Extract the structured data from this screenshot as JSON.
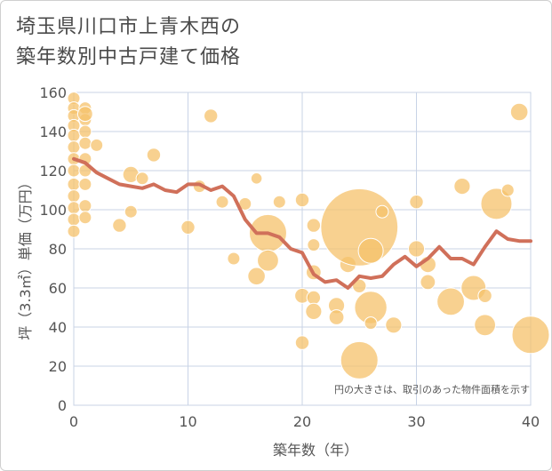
{
  "title_line1": "埼玉県川口市上青木西の",
  "title_line2": "築年数別中古戸建て価格",
  "chart_data": {
    "type": "scatter",
    "xlabel": "築年数（年）",
    "ylabel": "坪（3.3㎡）単価（万円）",
    "xlim": [
      0,
      40
    ],
    "ylim": [
      0,
      160
    ],
    "x_ticks": [
      "0",
      "10",
      "20",
      "30",
      "40"
    ],
    "y_ticks": [
      "0",
      "20",
      "40",
      "60",
      "80",
      "100",
      "120",
      "140",
      "160"
    ],
    "grid": true,
    "note": "円の大きさは、取引のあった物件面積を示す",
    "colors": {
      "bubble": "#f5c26b",
      "line": "#d0705a",
      "grid": "#c8d3e6",
      "plot_bg": "#ffffff"
    },
    "bubbles": [
      {
        "x": 0,
        "y": 157,
        "s": 1
      },
      {
        "x": 0,
        "y": 152,
        "s": 1
      },
      {
        "x": 0,
        "y": 148,
        "s": 1
      },
      {
        "x": 0,
        "y": 143,
        "s": 1
      },
      {
        "x": 0,
        "y": 138,
        "s": 1
      },
      {
        "x": 0,
        "y": 132,
        "s": 1
      },
      {
        "x": 0,
        "y": 126,
        "s": 1
      },
      {
        "x": 0,
        "y": 120,
        "s": 1
      },
      {
        "x": 0,
        "y": 113,
        "s": 1
      },
      {
        "x": 0,
        "y": 107,
        "s": 1
      },
      {
        "x": 0,
        "y": 101,
        "s": 1
      },
      {
        "x": 0,
        "y": 95,
        "s": 1
      },
      {
        "x": 0,
        "y": 89,
        "s": 1
      },
      {
        "x": 1,
        "y": 152,
        "s": 1
      },
      {
        "x": 1,
        "y": 146,
        "s": 1
      },
      {
        "x": 1,
        "y": 140,
        "s": 1
      },
      {
        "x": 1,
        "y": 134,
        "s": 1
      },
      {
        "x": 1,
        "y": 126,
        "s": 1
      },
      {
        "x": 1,
        "y": 120,
        "s": 1
      },
      {
        "x": 1,
        "y": 113,
        "s": 1
      },
      {
        "x": 1,
        "y": 102,
        "s": 1
      },
      {
        "x": 1,
        "y": 96,
        "s": 1
      },
      {
        "x": 1,
        "y": 149,
        "s": 1.2
      },
      {
        "x": 2,
        "y": 133,
        "s": 1
      },
      {
        "x": 4,
        "y": 92,
        "s": 1.1
      },
      {
        "x": 5,
        "y": 118,
        "s": 1.3
      },
      {
        "x": 5,
        "y": 99,
        "s": 1
      },
      {
        "x": 6,
        "y": 116,
        "s": 1
      },
      {
        "x": 7,
        "y": 128,
        "s": 1.1
      },
      {
        "x": 10,
        "y": 91,
        "s": 1.1
      },
      {
        "x": 11,
        "y": 112,
        "s": 1
      },
      {
        "x": 12,
        "y": 148,
        "s": 1.1
      },
      {
        "x": 13,
        "y": 104,
        "s": 1
      },
      {
        "x": 14,
        "y": 75,
        "s": 1
      },
      {
        "x": 15,
        "y": 103,
        "s": 1
      },
      {
        "x": 16,
        "y": 116,
        "s": 0.9
      },
      {
        "x": 16,
        "y": 66,
        "s": 1.4
      },
      {
        "x": 17,
        "y": 88,
        "s": 3.0
      },
      {
        "x": 17,
        "y": 74,
        "s": 1.7
      },
      {
        "x": 18,
        "y": 104,
        "s": 1
      },
      {
        "x": 20,
        "y": 105,
        "s": 1.1
      },
      {
        "x": 20,
        "y": 56,
        "s": 1.2
      },
      {
        "x": 20,
        "y": 32,
        "s": 1.1
      },
      {
        "x": 21,
        "y": 92,
        "s": 1.1
      },
      {
        "x": 21,
        "y": 82,
        "s": 1
      },
      {
        "x": 21,
        "y": 68,
        "s": 1.2
      },
      {
        "x": 21,
        "y": 55,
        "s": 1.1
      },
      {
        "x": 21,
        "y": 48,
        "s": 1.3
      },
      {
        "x": 23,
        "y": 51,
        "s": 1.3
      },
      {
        "x": 23,
        "y": 45,
        "s": 1.2
      },
      {
        "x": 24,
        "y": 72,
        "s": 1.3
      },
      {
        "x": 25,
        "y": 91,
        "s": 6.2
      },
      {
        "x": 25,
        "y": 61,
        "s": 1.1
      },
      {
        "x": 25,
        "y": 23,
        "s": 3.0
      },
      {
        "x": 26,
        "y": 79,
        "s": 2.0
      },
      {
        "x": 26,
        "y": 50,
        "s": 2.6
      },
      {
        "x": 26,
        "y": 42,
        "s": 1
      },
      {
        "x": 27,
        "y": 99,
        "s": 1
      },
      {
        "x": 28,
        "y": 41,
        "s": 1.3
      },
      {
        "x": 30,
        "y": 104,
        "s": 1.1
      },
      {
        "x": 30,
        "y": 80,
        "s": 1.3
      },
      {
        "x": 31,
        "y": 72,
        "s": 1.3
      },
      {
        "x": 31,
        "y": 63,
        "s": 1.2
      },
      {
        "x": 33,
        "y": 53,
        "s": 2.2
      },
      {
        "x": 34,
        "y": 112,
        "s": 1.3
      },
      {
        "x": 35,
        "y": 60,
        "s": 2.0
      },
      {
        "x": 36,
        "y": 41,
        "s": 1.7
      },
      {
        "x": 36,
        "y": 56,
        "s": 1.1
      },
      {
        "x": 37,
        "y": 103,
        "s": 2.5
      },
      {
        "x": 38,
        "y": 110,
        "s": 1
      },
      {
        "x": 39,
        "y": 150,
        "s": 1.4
      },
      {
        "x": 40,
        "y": 36,
        "s": 3.0
      }
    ],
    "series": [
      {
        "type": "line",
        "x": [
          0,
          1,
          2,
          3,
          4,
          5,
          6,
          7,
          8,
          9,
          10,
          11,
          12,
          13,
          14,
          15,
          16,
          17,
          18,
          19,
          20,
          21,
          22,
          23,
          24,
          25,
          26,
          27,
          28,
          29,
          30,
          31,
          32,
          33,
          34,
          35,
          36,
          37,
          38,
          39,
          40
        ],
        "values": [
          126,
          124,
          119,
          116,
          113,
          112,
          111,
          113,
          110,
          109,
          113,
          113,
          110,
          112,
          107,
          95,
          88,
          88,
          86,
          80,
          78,
          67,
          63,
          64,
          60,
          66,
          65,
          66,
          72,
          76,
          71,
          75,
          81,
          75,
          75,
          72,
          81,
          89,
          85,
          84,
          84
        ]
      }
    ]
  }
}
